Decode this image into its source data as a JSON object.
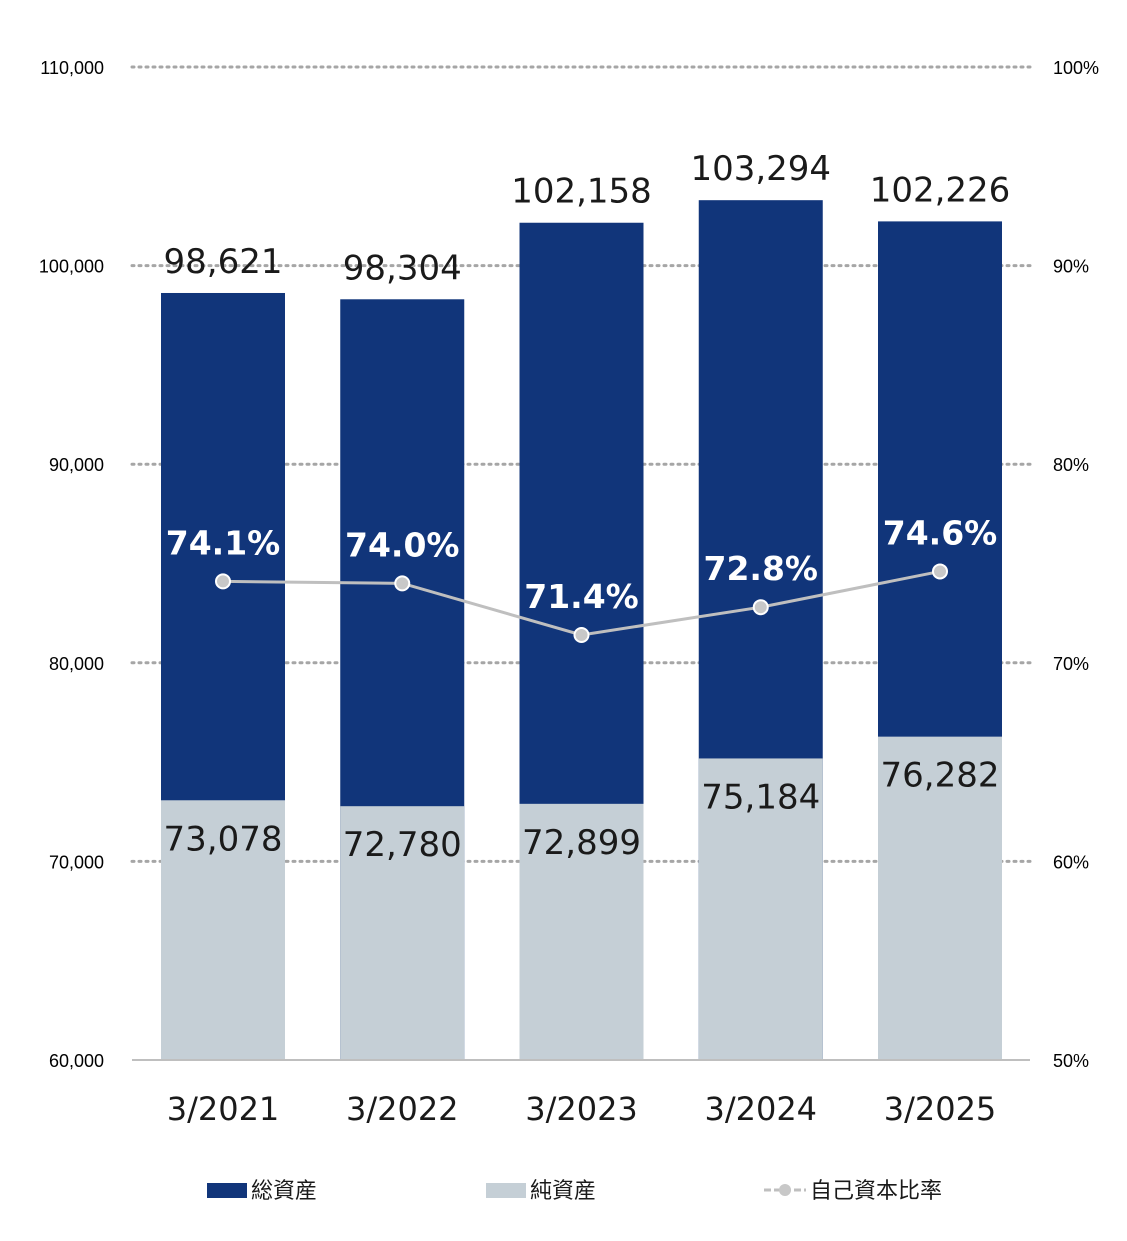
{
  "chart_data": {
    "type": "bar",
    "stacked": false,
    "categories": [
      "3/2021",
      "3/2022",
      "3/2023",
      "3/2024",
      "3/2025"
    ],
    "series": [
      {
        "name": "総資産",
        "type": "bar",
        "axis": "left",
        "values": [
          98621,
          98304,
          102158,
          103294,
          102226
        ],
        "labels": [
          "98,621",
          "98,304",
          "102,158",
          "103,294",
          "102,226"
        ]
      },
      {
        "name": "純資産",
        "type": "bar",
        "axis": "left",
        "values": [
          73078,
          72780,
          72899,
          75184,
          76282
        ],
        "labels": [
          "73,078",
          "72,780",
          "72,899",
          "75,184",
          "76,282"
        ]
      },
      {
        "name": "自己資本比率",
        "type": "line",
        "axis": "right",
        "values": [
          74.1,
          74.0,
          71.4,
          72.8,
          74.6
        ],
        "labels": [
          "74.1%",
          "74.0%",
          "71.4%",
          "72.8%",
          "74.6%"
        ]
      }
    ],
    "y_left": {
      "ylim": [
        60000,
        110000
      ],
      "ticks": [
        "60,000",
        "70,000",
        "80,000",
        "90,000",
        "100,000",
        "110,000"
      ]
    },
    "y_right": {
      "ylim": [
        50,
        100
      ],
      "ticks": [
        "50%",
        "60%",
        "70%",
        "80%",
        "90%",
        "100%"
      ]
    },
    "grid": true,
    "legend_position": "bottom",
    "colors": {
      "total_assets": "#11357a",
      "net_assets": "#c5cfd6",
      "ratio_line": "#bfbfbf",
      "ratio_marker": "#c8c8c8",
      "grid": "#a6a6a6",
      "axis": "#bfbfbf"
    }
  }
}
